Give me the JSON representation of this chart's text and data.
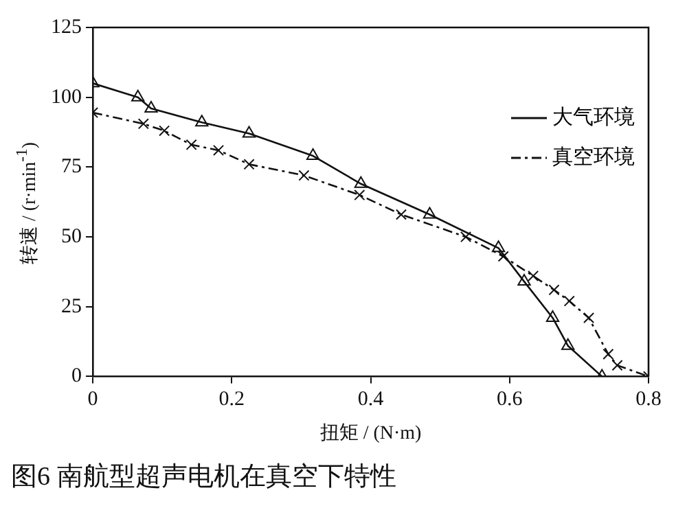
{
  "chart_data": {
    "type": "line",
    "xlabel": "扭矩 / (N·m)",
    "ylabel": "转速 / (r·min$^{-1}$)",
    "annotations": [
      "图6 南航型超声电机在真空下特性"
    ],
    "xlim": [
      0,
      0.8
    ],
    "xticks": [
      0,
      0.2,
      0.4,
      0.6,
      0.8
    ],
    "ylim": [
      0,
      125
    ],
    "yticks": [
      0,
      25,
      50,
      75,
      100,
      125
    ],
    "grid": false,
    "legend": "right",
    "series": [
      {
        "name": "大气环境",
        "color": "#111111",
        "marker": "triangle",
        "line_style": "solid",
        "x": [
          0,
          0.065,
          0.084,
          0.157,
          0.225,
          0.317,
          0.386,
          0.485,
          0.584,
          0.621,
          0.662,
          0.684,
          0.733
        ],
        "values": [
          105,
          100,
          96,
          91,
          87,
          79,
          69,
          58,
          46,
          34,
          21,
          11,
          0
        ]
      },
      {
        "name": "真空环境",
        "color": "#111111",
        "marker": "cross",
        "line_style": "dashed",
        "x": [
          0,
          0.073,
          0.103,
          0.142,
          0.181,
          0.225,
          0.304,
          0.384,
          0.444,
          0.537,
          0.591,
          0.634,
          0.664,
          0.686,
          0.714,
          0.742,
          0.755,
          0.8
        ],
        "values": [
          94.5,
          90.5,
          88,
          83,
          81,
          76,
          72,
          65,
          58,
          50,
          43,
          36,
          31,
          27,
          21,
          8,
          4,
          0
        ]
      }
    ]
  }
}
